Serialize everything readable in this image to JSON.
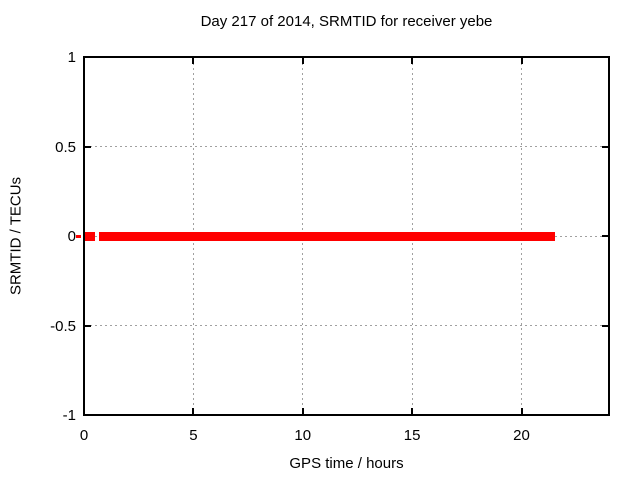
{
  "chart_data": {
    "type": "line",
    "title": "Day 217 of 2014, SRMTID for receiver yebe",
    "xlabel": "GPS time / hours",
    "ylabel": "SRMTID / TECUs",
    "xlim": [
      0,
      24
    ],
    "ylim": [
      -1,
      1
    ],
    "xticks": [
      0,
      5,
      10,
      15,
      20
    ],
    "xtick_labels": [
      "0",
      "5",
      "10",
      "15",
      "20"
    ],
    "yticks": [
      -1,
      -0.5,
      0,
      0.5,
      1
    ],
    "ytick_labels": [
      "-1",
      "-0.5",
      "0",
      "0.5",
      "1"
    ],
    "grid": true,
    "legend": "none",
    "colors": {
      "line": "#ff0000",
      "grid": "#a0a0a0",
      "border": "#000000",
      "text": "#000000",
      "background": "#ffffff"
    },
    "series": [
      {
        "name": "SRMTID",
        "y_value": 0,
        "color": "#ff0000",
        "segments": [
          {
            "x": [
              -0.36,
              -0.14
            ],
            "line_width": 3
          },
          {
            "x": [
              0.0,
              0.5
            ],
            "line_width": 9
          },
          {
            "x": [
              0.68,
              21.55
            ],
            "line_width": 9
          }
        ]
      }
    ]
  }
}
